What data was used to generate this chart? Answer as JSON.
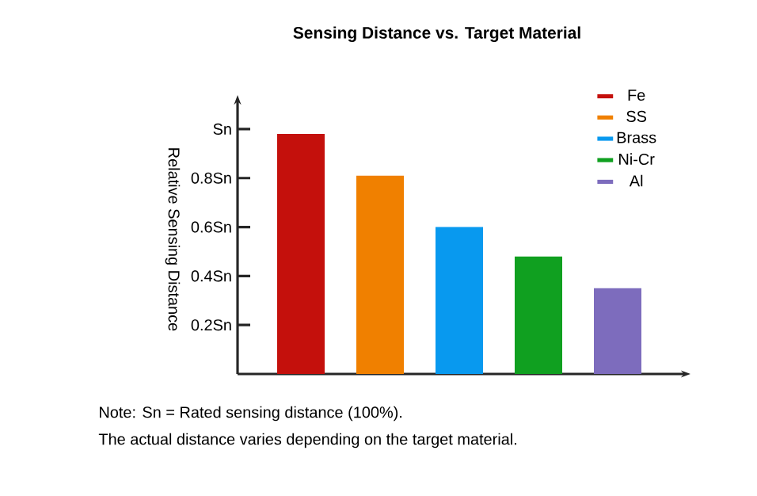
{
  "chart_data": {
    "type": "bar",
    "title": "Sensing Distance vs. Target Material",
    "ylabel": "Relative Sensing Distance",
    "categories": [
      null,
      null,
      null,
      null,
      null
    ],
    "series": [
      {
        "name": "Fe",
        "color": "#c4100c",
        "values": [
          0.98,
          null,
          null,
          null,
          null
        ]
      },
      {
        "name": "SS",
        "color": "#f08000",
        "values": [
          null,
          0.81,
          null,
          null,
          null
        ]
      },
      {
        "name": "Brass",
        "color": "#0899ef",
        "values": [
          null,
          null,
          0.6,
          null,
          null
        ]
      },
      {
        "name": "Ni-Cr",
        "color": "#10a020",
        "values": [
          null,
          null,
          null,
          0.48,
          null
        ]
      },
      {
        "name": "Al",
        "color": "#7d6cbd",
        "values": [
          null,
          null,
          null,
          null,
          0.35
        ]
      }
    ],
    "ylim": [
      0,
      1.1
    ],
    "yticks": [
      {
        "value": 0.2,
        "label": "0.2Sn"
      },
      {
        "value": 0.4,
        "label": "0.4Sn"
      },
      {
        "value": 0.6,
        "label": "0.6Sn"
      },
      {
        "value": 0.8,
        "label": "0.8Sn"
      },
      {
        "value": 1.0,
        "label": "Sn"
      }
    ],
    "legend": "top right",
    "grid": false,
    "annotations": [
      "Note: Sn = Rated sensing distance (100%).",
      "The actual distance varies depending on the target material."
    ]
  }
}
